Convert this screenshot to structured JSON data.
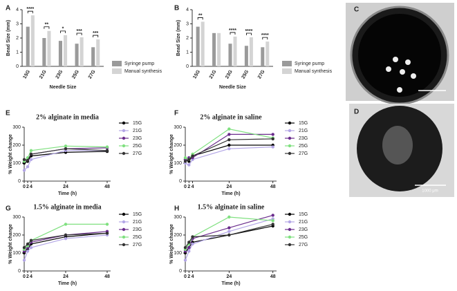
{
  "chart_data": [
    {
      "type": "bar",
      "label": "A",
      "ylabel": "Bead Size (mm)",
      "xlabel": "Needle Size",
      "categories": [
        "15G",
        "21G",
        "23G",
        "25G",
        "27G"
      ],
      "series": [
        {
          "name": "Syringe pump",
          "color": "#9a9a9a",
          "values": [
            2.8,
            2.0,
            1.8,
            1.6,
            1.35
          ]
        },
        {
          "name": "Manual synthesis",
          "color": "#d4d4d4",
          "values": [
            3.6,
            2.5,
            2.2,
            2.05,
            1.9
          ]
        }
      ],
      "annotations": [
        "****",
        "**",
        "*",
        "***",
        "***"
      ],
      "ylim": [
        0,
        4
      ],
      "yticks": [
        0,
        1,
        2,
        3,
        4
      ]
    },
    {
      "type": "bar",
      "label": "B",
      "ylabel": "Bead Size (mm)",
      "xlabel": "Needle Size",
      "categories": [
        "15G",
        "21G",
        "23G",
        "25G",
        "27G"
      ],
      "series": [
        {
          "name": "Syringe pump",
          "color": "#9a9a9a",
          "values": [
            2.8,
            2.35,
            1.6,
            1.45,
            1.35
          ]
        },
        {
          "name": "Manual synthesis",
          "color": "#d4d4d4",
          "values": [
            3.15,
            2.35,
            2.1,
            2.05,
            1.75
          ]
        }
      ],
      "annotations": [
        "**",
        null,
        "****",
        "****",
        "****"
      ],
      "ylim": [
        0,
        4
      ],
      "yticks": [
        0,
        1,
        2,
        3,
        4
      ]
    },
    {
      "type": "line",
      "label": "E",
      "title": "2% alginate in media",
      "ylabel": "% Weight change",
      "xlabel": "Time (h)",
      "x": [
        0,
        2,
        4,
        24,
        48
      ],
      "xlim": [
        0,
        50
      ],
      "xticks": [
        0,
        2,
        4,
        24,
        48
      ],
      "ylim": [
        0,
        300
      ],
      "yticks": [
        0,
        100,
        200,
        300
      ],
      "series": [
        {
          "name": "15G",
          "color": "#000000",
          "values": [
            100,
            110,
            140,
            160,
            165
          ]
        },
        {
          "name": "21G",
          "color": "#b3a6e6",
          "values": [
            60,
            80,
            120,
            170,
            170
          ]
        },
        {
          "name": "23G",
          "color": "#6a2c8c",
          "values": [
            110,
            120,
            150,
            180,
            185
          ]
        },
        {
          "name": "25G",
          "color": "#7fe07f",
          "values": [
            110,
            130,
            170,
            195,
            190
          ]
        },
        {
          "name": "27G",
          "color": "#333333",
          "values": [
            120,
            115,
            150,
            180,
            170
          ]
        }
      ]
    },
    {
      "type": "line",
      "label": "F",
      "title": "2% alginate in saline",
      "ylabel": "% Weight change",
      "xlabel": "Time (h)",
      "x": [
        0,
        2,
        4,
        24,
        48
      ],
      "xlim": [
        0,
        50
      ],
      "xticks": [
        0,
        2,
        4,
        24,
        48
      ],
      "ylim": [
        0,
        300
      ],
      "yticks": [
        0,
        100,
        200,
        300
      ],
      "series": [
        {
          "name": "15G",
          "color": "#000000",
          "values": [
            120,
            110,
            140,
            200,
            200
          ]
        },
        {
          "name": "21G",
          "color": "#b3a6e6",
          "values": [
            100,
            90,
            120,
            180,
            190
          ]
        },
        {
          "name": "23G",
          "color": "#6a2c8c",
          "values": [
            120,
            130,
            130,
            260,
            260
          ]
        },
        {
          "name": "25G",
          "color": "#7fe07f",
          "values": [
            130,
            120,
            150,
            290,
            240
          ]
        },
        {
          "name": "27G",
          "color": "#333333",
          "values": [
            110,
            120,
            140,
            230,
            235
          ]
        }
      ]
    },
    {
      "type": "line",
      "label": "G",
      "title": "1.5% alginate in media",
      "ylabel": "% Weight change",
      "xlabel": "Time (h)",
      "x": [
        0,
        2,
        4,
        24,
        48
      ],
      "xlim": [
        0,
        50
      ],
      "xticks": [
        0,
        2,
        4,
        24,
        48
      ],
      "ylim": [
        0,
        300
      ],
      "yticks": [
        0,
        100,
        200,
        300
      ],
      "series": [
        {
          "name": "15G",
          "color": "#000000",
          "values": [
            100,
            120,
            150,
            190,
            210
          ]
        },
        {
          "name": "21G",
          "color": "#b3a6e6",
          "values": [
            60,
            110,
            130,
            180,
            200
          ]
        },
        {
          "name": "23G",
          "color": "#6a2c8c",
          "values": [
            110,
            130,
            160,
            200,
            220
          ]
        },
        {
          "name": "25G",
          "color": "#7fe07f",
          "values": [
            120,
            140,
            170,
            260,
            260
          ]
        },
        {
          "name": "27G",
          "color": "#333333",
          "values": [
            130,
            150,
            170,
            200,
            210
          ]
        }
      ]
    },
    {
      "type": "line",
      "label": "H",
      "title": "1.5% alginate in saline",
      "ylabel": "% Weight change",
      "xlabel": "Time (h)",
      "x": [
        0,
        2,
        4,
        24,
        48
      ],
      "xlim": [
        0,
        50
      ],
      "xticks": [
        0,
        2,
        4,
        24,
        48
      ],
      "ylim": [
        0,
        300
      ],
      "yticks": [
        0,
        100,
        200,
        300
      ],
      "series": [
        {
          "name": "15G",
          "color": "#000000",
          "values": [
            100,
            130,
            160,
            200,
            250
          ]
        },
        {
          "name": "21G",
          "color": "#b3a6e6",
          "values": [
            60,
            110,
            150,
            220,
            290
          ]
        },
        {
          "name": "23G",
          "color": "#6a2c8c",
          "values": [
            110,
            130,
            180,
            240,
            310
          ]
        },
        {
          "name": "25G",
          "color": "#7fe07f",
          "values": [
            120,
            150,
            190,
            300,
            280
          ]
        },
        {
          "name": "27G",
          "color": "#333333",
          "values": [
            130,
            160,
            190,
            200,
            260
          ]
        }
      ]
    }
  ],
  "images": [
    {
      "label": "C"
    },
    {
      "label": "D",
      "scale_bar": "1000 μm"
    }
  ]
}
